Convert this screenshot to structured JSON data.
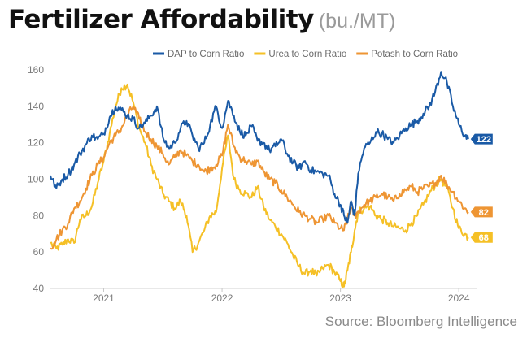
{
  "title": "Fertilizer Affordability",
  "unit_label": "(bu./MT)",
  "source": "Source: Bloomberg Intelligence",
  "chart_data": {
    "type": "line",
    "title": "Fertilizer Affordability",
    "subtitle": "(bu./MT)",
    "xlabel": "",
    "ylabel": "",
    "ylim": [
      40,
      160
    ],
    "xlim": [
      2020.55,
      2024.15
    ],
    "yticks": [
      40,
      60,
      80,
      100,
      120,
      140,
      160
    ],
    "xticks": [
      {
        "value": 2021.0,
        "label": "2021"
      },
      {
        "value": 2022.0,
        "label": "2022"
      },
      {
        "value": 2023.0,
        "label": "2023"
      },
      {
        "value": 2024.0,
        "label": "2024"
      }
    ],
    "grid": false,
    "legend": "top-right",
    "series": [
      {
        "name": "DAP to Corn Ratio",
        "color": "#1a5aa6",
        "end_label": "122",
        "points": [
          [
            2020.55,
            102
          ],
          [
            2020.6,
            95
          ],
          [
            2020.65,
            100
          ],
          [
            2020.7,
            103
          ],
          [
            2020.75,
            108
          ],
          [
            2020.8,
            114
          ],
          [
            2020.85,
            119
          ],
          [
            2020.9,
            124
          ],
          [
            2020.95,
            122
          ],
          [
            2021.0,
            125
          ],
          [
            2021.05,
            134
          ],
          [
            2021.1,
            140
          ],
          [
            2021.15,
            138
          ],
          [
            2021.2,
            135
          ],
          [
            2021.25,
            133
          ],
          [
            2021.3,
            128
          ],
          [
            2021.35,
            131
          ],
          [
            2021.4,
            135
          ],
          [
            2021.45,
            140
          ],
          [
            2021.5,
            123
          ],
          [
            2021.55,
            117
          ],
          [
            2021.6,
            120
          ],
          [
            2021.65,
            128
          ],
          [
            2021.7,
            132
          ],
          [
            2021.75,
            124
          ],
          [
            2021.8,
            117
          ],
          [
            2021.85,
            120
          ],
          [
            2021.9,
            130
          ],
          [
            2021.95,
            140
          ],
          [
            2022.0,
            128
          ],
          [
            2022.05,
            143
          ],
          [
            2022.1,
            135
          ],
          [
            2022.15,
            126
          ],
          [
            2022.2,
            124
          ],
          [
            2022.25,
            129
          ],
          [
            2022.3,
            121
          ],
          [
            2022.35,
            120
          ],
          [
            2022.4,
            116
          ],
          [
            2022.45,
            118
          ],
          [
            2022.5,
            122
          ],
          [
            2022.55,
            114
          ],
          [
            2022.6,
            109
          ],
          [
            2022.65,
            106
          ],
          [
            2022.7,
            110
          ],
          [
            2022.75,
            105
          ],
          [
            2022.8,
            104
          ],
          [
            2022.85,
            103
          ],
          [
            2022.9,
            102
          ],
          [
            2022.95,
            92
          ],
          [
            2023.0,
            86
          ],
          [
            2023.03,
            80
          ],
          [
            2023.06,
            76
          ],
          [
            2023.09,
            88
          ],
          [
            2023.12,
            80
          ],
          [
            2023.15,
            103
          ],
          [
            2023.2,
            117
          ],
          [
            2023.25,
            120
          ],
          [
            2023.3,
            126
          ],
          [
            2023.35,
            125
          ],
          [
            2023.4,
            122
          ],
          [
            2023.45,
            120
          ],
          [
            2023.5,
            124
          ],
          [
            2023.55,
            128
          ],
          [
            2023.6,
            130
          ],
          [
            2023.65,
            132
          ],
          [
            2023.7,
            136
          ],
          [
            2023.75,
            140
          ],
          [
            2023.8,
            148
          ],
          [
            2023.85,
            159
          ],
          [
            2023.9,
            153
          ],
          [
            2023.95,
            140
          ],
          [
            2024.0,
            130
          ],
          [
            2024.05,
            124
          ],
          [
            2024.08,
            122
          ]
        ]
      },
      {
        "name": "Urea to Corn Ratio",
        "color": "#f5c026",
        "end_label": "68",
        "points": [
          [
            2020.55,
            65
          ],
          [
            2020.6,
            62
          ],
          [
            2020.65,
            64
          ],
          [
            2020.7,
            67
          ],
          [
            2020.75,
            65
          ],
          [
            2020.8,
            78
          ],
          [
            2020.85,
            80
          ],
          [
            2020.9,
            85
          ],
          [
            2020.95,
            98
          ],
          [
            2021.0,
            110
          ],
          [
            2021.05,
            125
          ],
          [
            2021.1,
            140
          ],
          [
            2021.15,
            150
          ],
          [
            2021.2,
            152
          ],
          [
            2021.25,
            142
          ],
          [
            2021.3,
            128
          ],
          [
            2021.35,
            120
          ],
          [
            2021.4,
            108
          ],
          [
            2021.45,
            100
          ],
          [
            2021.5,
            92
          ],
          [
            2021.55,
            88
          ],
          [
            2021.6,
            84
          ],
          [
            2021.65,
            88
          ],
          [
            2021.7,
            80
          ],
          [
            2021.75,
            60
          ],
          [
            2021.8,
            65
          ],
          [
            2021.85,
            72
          ],
          [
            2021.9,
            80
          ],
          [
            2021.95,
            82
          ],
          [
            2022.0,
            106
          ],
          [
            2022.05,
            124
          ],
          [
            2022.1,
            100
          ],
          [
            2022.15,
            94
          ],
          [
            2022.2,
            92
          ],
          [
            2022.25,
            90
          ],
          [
            2022.3,
            96
          ],
          [
            2022.35,
            85
          ],
          [
            2022.4,
            78
          ],
          [
            2022.45,
            74
          ],
          [
            2022.5,
            70
          ],
          [
            2022.55,
            65
          ],
          [
            2022.6,
            58
          ],
          [
            2022.65,
            52
          ],
          [
            2022.7,
            48
          ],
          [
            2022.75,
            50
          ],
          [
            2022.8,
            47
          ],
          [
            2022.85,
            51
          ],
          [
            2022.9,
            53
          ],
          [
            2022.95,
            49
          ],
          [
            2023.0,
            44
          ],
          [
            2023.03,
            41
          ],
          [
            2023.06,
            50
          ],
          [
            2023.09,
            60
          ],
          [
            2023.12,
            72
          ],
          [
            2023.15,
            82
          ],
          [
            2023.2,
            84
          ],
          [
            2023.25,
            85
          ],
          [
            2023.3,
            80
          ],
          [
            2023.35,
            78
          ],
          [
            2023.4,
            76
          ],
          [
            2023.45,
            74
          ],
          [
            2023.5,
            73
          ],
          [
            2023.55,
            72
          ],
          [
            2023.6,
            76
          ],
          [
            2023.65,
            80
          ],
          [
            2023.7,
            86
          ],
          [
            2023.75,
            92
          ],
          [
            2023.8,
            97
          ],
          [
            2023.85,
            100
          ],
          [
            2023.9,
            95
          ],
          [
            2023.95,
            84
          ],
          [
            2024.0,
            73
          ],
          [
            2024.05,
            70
          ],
          [
            2024.08,
            68
          ]
        ]
      },
      {
        "name": "Potash to Corn Ratio",
        "color": "#ee9533",
        "end_label": "82",
        "points": [
          [
            2020.55,
            62
          ],
          [
            2020.6,
            67
          ],
          [
            2020.65,
            72
          ],
          [
            2020.7,
            76
          ],
          [
            2020.75,
            84
          ],
          [
            2020.8,
            88
          ],
          [
            2020.85,
            95
          ],
          [
            2020.9,
            102
          ],
          [
            2020.95,
            108
          ],
          [
            2021.0,
            112
          ],
          [
            2021.05,
            120
          ],
          [
            2021.1,
            124
          ],
          [
            2021.15,
            128
          ],
          [
            2021.2,
            135
          ],
          [
            2021.25,
            140
          ],
          [
            2021.3,
            133
          ],
          [
            2021.35,
            126
          ],
          [
            2021.4,
            122
          ],
          [
            2021.45,
            118
          ],
          [
            2021.5,
            114
          ],
          [
            2021.55,
            108
          ],
          [
            2021.6,
            112
          ],
          [
            2021.65,
            116
          ],
          [
            2021.7,
            113
          ],
          [
            2021.75,
            110
          ],
          [
            2021.8,
            108
          ],
          [
            2021.85,
            104
          ],
          [
            2021.9,
            106
          ],
          [
            2021.95,
            108
          ],
          [
            2022.0,
            113
          ],
          [
            2022.05,
            130
          ],
          [
            2022.1,
            118
          ],
          [
            2022.15,
            112
          ],
          [
            2022.2,
            110
          ],
          [
            2022.25,
            108
          ],
          [
            2022.3,
            110
          ],
          [
            2022.35,
            104
          ],
          [
            2022.4,
            100
          ],
          [
            2022.45,
            98
          ],
          [
            2022.5,
            94
          ],
          [
            2022.55,
            90
          ],
          [
            2022.6,
            86
          ],
          [
            2022.65,
            82
          ],
          [
            2022.7,
            80
          ],
          [
            2022.75,
            78
          ],
          [
            2022.8,
            76
          ],
          [
            2022.85,
            78
          ],
          [
            2022.9,
            80
          ],
          [
            2022.95,
            76
          ],
          [
            2023.0,
            73
          ],
          [
            2023.03,
            72
          ],
          [
            2023.06,
            78
          ],
          [
            2023.09,
            84
          ],
          [
            2023.12,
            80
          ],
          [
            2023.15,
            82
          ],
          [
            2023.2,
            86
          ],
          [
            2023.25,
            88
          ],
          [
            2023.3,
            90
          ],
          [
            2023.35,
            92
          ],
          [
            2023.4,
            90
          ],
          [
            2023.45,
            88
          ],
          [
            2023.5,
            92
          ],
          [
            2023.55,
            94
          ],
          [
            2023.6,
            96
          ],
          [
            2023.65,
            93
          ],
          [
            2023.7,
            95
          ],
          [
            2023.75,
            96
          ],
          [
            2023.8,
            98
          ],
          [
            2023.85,
            102
          ],
          [
            2023.9,
            97
          ],
          [
            2023.95,
            93
          ],
          [
            2024.0,
            88
          ],
          [
            2024.05,
            84
          ],
          [
            2024.08,
            82
          ]
        ]
      }
    ]
  }
}
